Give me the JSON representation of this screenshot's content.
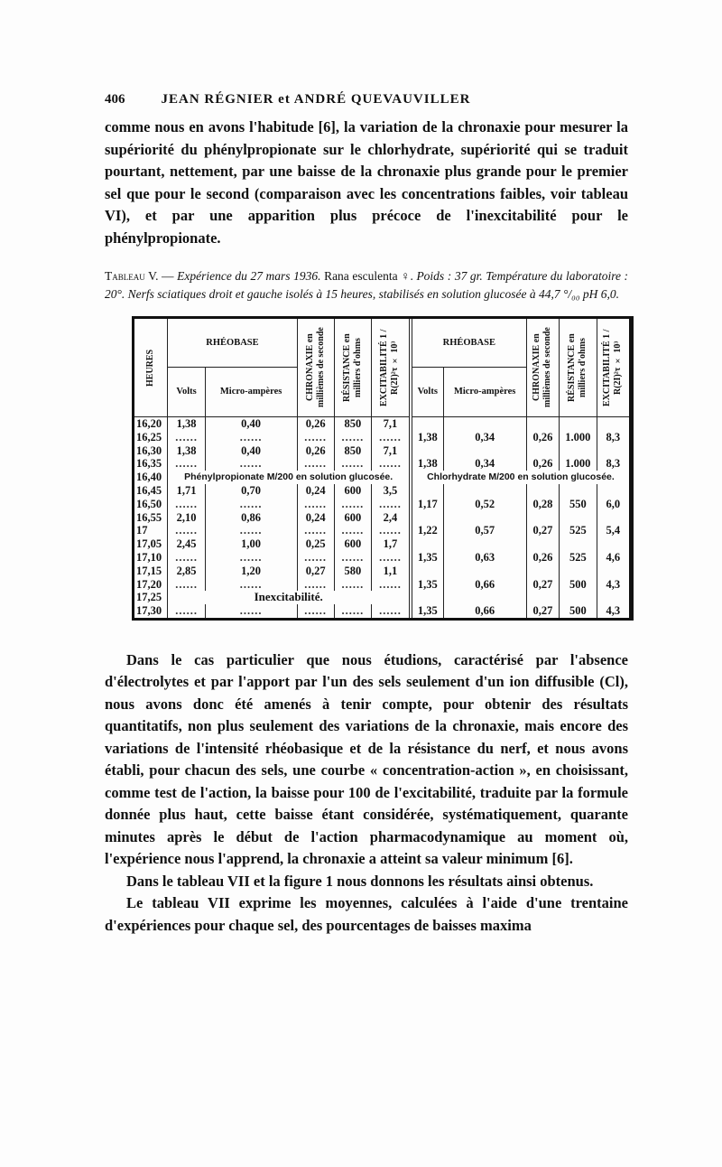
{
  "header": {
    "page_number": "406",
    "authors": "JEAN RÉGNIER et ANDRÉ QUEVAUVILLER"
  },
  "intro": "comme nous en avons l'habitude [6], la variation de la chronaxie pour mesurer la supériorité du phénylpropionate sur le chlorhydrate, supériorité qui se traduit pourtant, nettement, par une baisse de la chronaxie plus grande pour le premier sel que pour le second (comparaison avec les concentrations faibles, voir tableau VI), et par une apparition plus précoce de l'inexcitabilité pour le phénylpropionate.",
  "caption": {
    "label": "Tableau V. —",
    "italic1": "Expérience du 27 mars 1936.",
    "plain": "Rana esculenta ♀.",
    "italic2": "Poids : 37 gr. Température du laboratoire : 20°. Nerfs sciatiques droit et gauche isolés à 15 heures, stabilisés en solution glucosée à 44,7 °/₀₀ pH 6,0."
  },
  "table": {
    "headers": {
      "heures": "HEURES",
      "rheobase": "RHÉOBASE",
      "volts": "Volts",
      "micro": "Micro-ampères",
      "chronaxie": "CHRONAXIE en millièmes de seconde",
      "resistance": "RÉSISTANCE en milliers d'ohms",
      "excitabilite": "EXCITABILITÉ 1 / R(2I)²τ × 10³"
    },
    "notes": {
      "left": "Phénylpropionate M/200 en solution glucosée.",
      "right": "Chlorhydrate M/200 en solution glucosée.",
      "inexc": "Inexcitabilité."
    },
    "rows": [
      {
        "h": "16,20",
        "l": [
          "1,38",
          "0,40",
          "0,26",
          "850",
          "7,1"
        ],
        "r": null
      },
      {
        "h": "16,25",
        "l": "dots",
        "r": [
          "1,38",
          "0,34",
          "0,26",
          "1.000",
          "8,3"
        ]
      },
      {
        "h": "16,30",
        "l": [
          "1,38",
          "0,40",
          "0,26",
          "850",
          "7,1"
        ],
        "r": null
      },
      {
        "h": "16,35",
        "l": "dots",
        "r": [
          "1,38",
          "0,34",
          "0,26",
          "1.000",
          "8,3"
        ]
      },
      {
        "h": "16,40",
        "l": "note",
        "r": "note"
      },
      {
        "h": "16,45",
        "l": [
          "1,71",
          "0,70",
          "0,24",
          "600",
          "3,5"
        ],
        "r": null
      },
      {
        "h": "16,50",
        "l": "dots",
        "r": [
          "1,17",
          "0,52",
          "0,28",
          "550",
          "6,0"
        ]
      },
      {
        "h": "16,55",
        "l": [
          "2,10",
          "0,86",
          "0,24",
          "600",
          "2,4"
        ],
        "r": null
      },
      {
        "h": "17",
        "l": "dots",
        "r": [
          "1,22",
          "0,57",
          "0,27",
          "525",
          "5,4"
        ]
      },
      {
        "h": "17,05",
        "l": [
          "2,45",
          "1,00",
          "0,25",
          "600",
          "1,7"
        ],
        "r": null
      },
      {
        "h": "17,10",
        "l": "dots",
        "r": [
          "1,35",
          "0,63",
          "0,26",
          "525",
          "4,6"
        ]
      },
      {
        "h": "17,15",
        "l": [
          "2,85",
          "1,20",
          "0,27",
          "580",
          "1,1"
        ],
        "r": null
      },
      {
        "h": "17,20",
        "l": "dots",
        "r": [
          "1,35",
          "0,66",
          "0,27",
          "500",
          "4,3"
        ]
      },
      {
        "h": "17,25",
        "l": "inexc",
        "r": null
      },
      {
        "h": "17,30",
        "l": "dots",
        "r": [
          "1,35",
          "0,66",
          "0,27",
          "500",
          "4,3"
        ]
      }
    ]
  },
  "body": [
    "Dans le cas particulier que nous étudions, caractérisé par l'absence d'électrolytes et par l'apport par l'un des sels seulement d'un ion diffusible (Cl), nous avons donc été amenés à tenir compte, pour obtenir des résultats quantitatifs, non plus seulement des variations de la chronaxie, mais encore des variations de l'intensité rhéobasique et de la résistance du nerf, et nous avons établi, pour chacun des sels, une courbe « concentration-action », en choisissant, comme test de l'action, la baisse pour 100 de l'excitabilité, traduite par la formule donnée plus haut, cette baisse étant considérée, systématiquement, quarante minutes après le début de l'action pharmacodynamique au moment où, l'expérience nous l'apprend, la chronaxie a atteint sa valeur minimum [6].",
    "Dans le tableau VII et la figure 1 nous donnons les résultats ainsi obtenus.",
    "Le tableau VII exprime les moyennes, calculées à l'aide d'une trentaine d'expériences pour chaque sel, des pourcentages de baisses maxima"
  ]
}
